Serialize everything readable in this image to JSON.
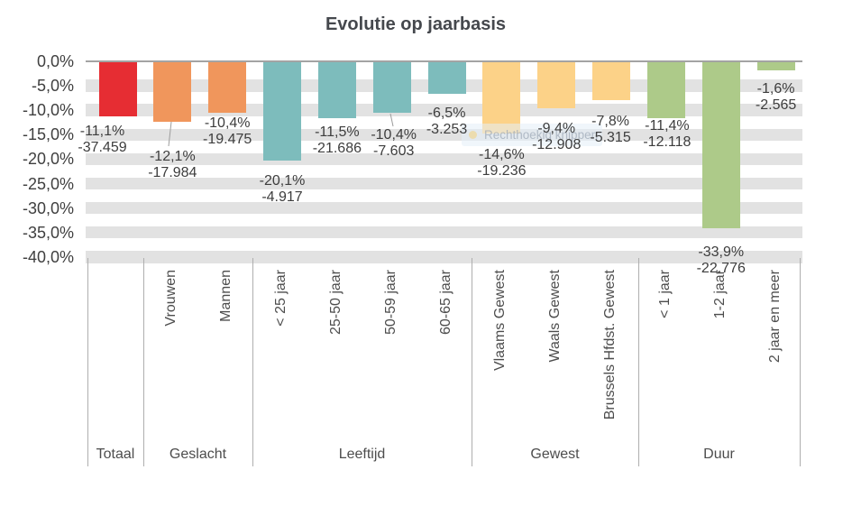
{
  "watermark": {
    "text": "Rechthoekig knippen"
  },
  "chart_data": {
    "type": "bar",
    "title": "Evolutie op jaarbasis",
    "xlabel": "",
    "ylabel": "",
    "ylim": [
      -40,
      0
    ],
    "ytick_step_pct": 5,
    "ytick_labels": [
      "0,0%",
      "-5,0%",
      "-10,0%",
      "-15,0%",
      "-20,0%",
      "-25,0%",
      "-30,0%",
      "-35,0%",
      "-40,0%"
    ],
    "grid": "horizontal striped bands, light gray",
    "legend": "none",
    "value_label_format": "percent (comma decimal) over absolute count (dot thousands separator)",
    "groups": [
      {
        "label": "Totaal",
        "color": "#e62d33",
        "bars": [
          {
            "category": "",
            "value_pct": -11.1,
            "value_abs": -37459,
            "pct_label": "-11,1%",
            "abs_label": "-37.459"
          }
        ]
      },
      {
        "label": "Geslacht",
        "color": "#f0965c",
        "bars": [
          {
            "category": "Vrouwen",
            "value_pct": -12.1,
            "value_abs": -17984,
            "pct_label": "-12,1%",
            "abs_label": "-17.984"
          },
          {
            "category": "Mannen",
            "value_pct": -10.4,
            "value_abs": -19475,
            "pct_label": "-10,4%",
            "abs_label": "-19.475"
          }
        ]
      },
      {
        "label": "Leeftijd",
        "color": "#7dbcbc",
        "bars": [
          {
            "category": "< 25 jaar",
            "value_pct": -20.1,
            "value_abs": -4917,
            "pct_label": "-20,1%",
            "abs_label": "-4.917"
          },
          {
            "category": "25-50 jaar",
            "value_pct": -11.5,
            "value_abs": -21686,
            "pct_label": "-11,5%",
            "abs_label": "-21.686"
          },
          {
            "category": "50-59 jaar",
            "value_pct": -10.4,
            "value_abs": -7603,
            "pct_label": "-10,4%",
            "abs_label": "-7.603"
          },
          {
            "category": "60-65 jaar",
            "value_pct": -6.5,
            "value_abs": -3253,
            "pct_label": "-6,5%",
            "abs_label": "-3.253"
          }
        ]
      },
      {
        "label": "Gewest",
        "color": "#fcd288",
        "bars": [
          {
            "category": "Vlaams Gewest",
            "value_pct": -14.6,
            "value_abs": -19236,
            "pct_label": "-14,6%",
            "abs_label": "-19.236"
          },
          {
            "category": "Waals Gewest",
            "value_pct": -9.4,
            "value_abs": -12908,
            "pct_label": "-9,4%",
            "abs_label": "-12.908"
          },
          {
            "category": "Brussels Hfdst. Gewest",
            "value_pct": -7.8,
            "value_abs": -5315,
            "pct_label": "-7,8%",
            "abs_label": "-5.315"
          }
        ]
      },
      {
        "label": "Duur",
        "color": "#adca89",
        "bars": [
          {
            "category": "< 1 jaar",
            "value_pct": -11.4,
            "value_abs": -12118,
            "pct_label": "-11,4%",
            "abs_label": "-12.118"
          },
          {
            "category": "1-2 jaar",
            "value_pct": -33.9,
            "value_abs": -22776,
            "pct_label": "-33,9%",
            "abs_label": "-22.776"
          },
          {
            "category": "2 jaar en meer",
            "value_pct": -1.6,
            "value_abs": -2565,
            "pct_label": "-1,6%",
            "abs_label": "-2.565"
          }
        ]
      }
    ]
  }
}
